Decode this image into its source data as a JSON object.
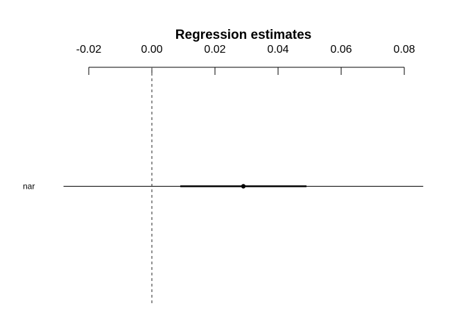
{
  "chart_data": {
    "type": "coefficient-plot",
    "title": "Regression estimates",
    "xlabel": "",
    "ylabel": "",
    "xlim": [
      -0.02,
      0.08
    ],
    "x_ticks": [
      -0.02,
      0.0,
      0.02,
      0.04,
      0.06,
      0.08
    ],
    "x_tick_labels": [
      "-0.02",
      "0.00",
      "0.02",
      "0.04",
      "0.06",
      "0.08"
    ],
    "reference_line": 0.0,
    "axis_position": "top",
    "grid": false,
    "rows": [
      {
        "label": "nar",
        "estimate": 0.029,
        "inner_interval": [
          0.009,
          0.049
        ],
        "outer_interval": [
          -0.028,
          0.086
        ]
      }
    ],
    "colors": {
      "estimate": "#000000",
      "interval": "#000000",
      "reference": "#555555",
      "axis": "#000000"
    }
  }
}
